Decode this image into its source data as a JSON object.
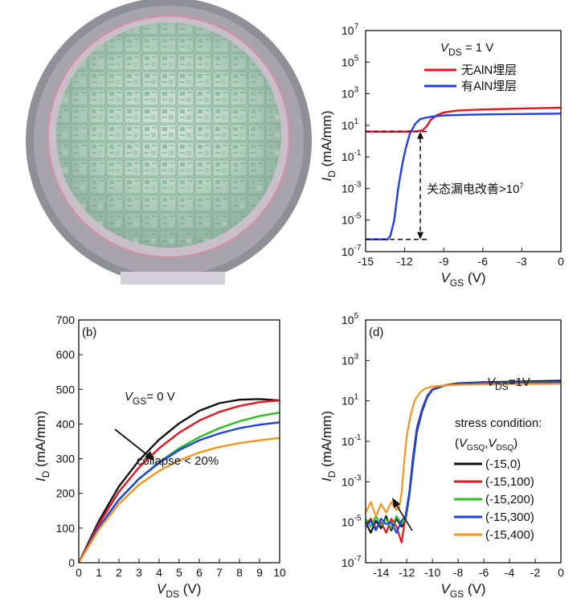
{
  "chart_data": [
    {
      "id": "a",
      "type": "photo",
      "description_label": "",
      "panel_label": ""
    },
    {
      "id": "transfer_top",
      "type": "line",
      "y_scale": "log",
      "xlabel": {
        "main": "V",
        "sub": "GS",
        "unit": " (V)"
      },
      "ylabel": {
        "main": "I",
        "sub": "D",
        "unit": " (mA/mm)"
      },
      "xlim": [
        -15,
        0
      ],
      "ylim": [
        1e-07,
        10000000.0
      ],
      "x_ticks": [
        -15,
        -12,
        -9,
        -6,
        -3,
        0
      ],
      "y_ticks": [
        {
          "v": 10000000.0,
          "base": "10",
          "exp": "7"
        },
        {
          "v": 100000.0,
          "base": "10",
          "exp": "5"
        },
        {
          "v": 1000.0,
          "base": "10",
          "exp": "3"
        },
        {
          "v": 10.0,
          "base": "10",
          "exp": "1"
        },
        {
          "v": 0.1,
          "base": "10",
          "exp": "-1"
        },
        {
          "v": 0.001,
          "base": "10",
          "exp": "-3"
        },
        {
          "v": 1e-05,
          "base": "10",
          "exp": "-5"
        },
        {
          "v": 1e-07,
          "base": "10",
          "exp": "-7"
        }
      ],
      "condition": {
        "main": "V",
        "sub": "DS",
        "rest": " = 1 V"
      },
      "legend": "top-right",
      "series": [
        {
          "name": "无AlN埋层",
          "color": "#e8141b",
          "x": [
            -15,
            -14,
            -13,
            -12,
            -11,
            -10.6,
            -10.3,
            -10,
            -9.5,
            -9,
            -8,
            -6,
            -4,
            -2,
            0
          ],
          "y": [
            4,
            4,
            4,
            4,
            4.2,
            5,
            9,
            22,
            45,
            65,
            85,
            100,
            110,
            120,
            130
          ]
        },
        {
          "name": "有AlN埋层",
          "color": "#1d3ff0",
          "x": [
            -15,
            -14,
            -13.6,
            -13.3,
            -13.1,
            -12.8,
            -12.5,
            -12.2,
            -11.9,
            -11.6,
            -11.2,
            -10.8,
            -10,
            -9,
            -7,
            -5,
            -3,
            -1,
            0
          ],
          "y": [
            6e-07,
            6e-07,
            6e-07,
            6e-07,
            1e-06,
            1e-05,
            0.001,
            0.03,
            0.4,
            3,
            12,
            25,
            35,
            42,
            47,
            50,
            52,
            54,
            55
          ]
        }
      ],
      "annotation": {
        "text": "关态漏电改善>10",
        "exp": "7",
        "x": -10.8,
        "y_top": 4,
        "y_bottom": 6e-07
      }
    },
    {
      "id": "b",
      "type": "line",
      "panel_label": "(b)",
      "xlabel": {
        "main": "V",
        "sub": "DS",
        "unit": " (V)"
      },
      "ylabel": {
        "main": "I",
        "sub": "D",
        "unit": " (mA/mm)"
      },
      "xlim": [
        0,
        10
      ],
      "ylim": [
        0,
        700
      ],
      "x_ticks": [
        0,
        1,
        2,
        3,
        4,
        5,
        6,
        7,
        8,
        9,
        10
      ],
      "y_ticks": [
        0,
        100,
        200,
        300,
        400,
        500,
        600,
        700
      ],
      "annotations": [
        {
          "main": "V",
          "sub": "GS",
          "rest": "= 0 V"
        },
        {
          "text": "collapse < 20%"
        }
      ],
      "series": [
        {
          "color": "#111111",
          "x": [
            0,
            1,
            2,
            3,
            4,
            5,
            6,
            7,
            8,
            9,
            10
          ],
          "y": [
            0,
            120,
            220,
            295,
            355,
            402,
            438,
            460,
            470,
            472,
            468
          ]
        },
        {
          "color": "#e8141b",
          "x": [
            0,
            1,
            2,
            3,
            4,
            5,
            6,
            7,
            8,
            9,
            10
          ],
          "y": [
            0,
            112,
            205,
            275,
            330,
            375,
            410,
            435,
            452,
            463,
            468
          ]
        },
        {
          "color": "#28c021",
          "x": [
            0,
            1,
            2,
            3,
            4,
            5,
            6,
            7,
            8,
            9,
            10
          ],
          "y": [
            0,
            103,
            182,
            242,
            290,
            330,
            362,
            388,
            408,
            423,
            433
          ]
        },
        {
          "color": "#1d3ff0",
          "x": [
            0,
            1,
            2,
            3,
            4,
            5,
            6,
            7,
            8,
            9,
            10
          ],
          "y": [
            0,
            103,
            182,
            242,
            288,
            325,
            353,
            373,
            388,
            398,
            405
          ]
        },
        {
          "color": "#f7941d",
          "x": [
            0,
            1,
            2,
            3,
            4,
            5,
            6,
            7,
            8,
            9,
            10
          ],
          "y": [
            0,
            96,
            170,
            225,
            265,
            295,
            318,
            334,
            345,
            353,
            360
          ]
        }
      ]
    },
    {
      "id": "d",
      "type": "line",
      "panel_label": "(d)",
      "y_scale": "log",
      "xlabel": {
        "main": "V",
        "sub": "GS",
        "unit": " (V)"
      },
      "ylabel": {
        "main": "I",
        "sub": "D",
        "unit": " (mA/mm)"
      },
      "xlim": [
        -15.2,
        0
      ],
      "ylim": [
        1e-07,
        100000.0
      ],
      "x_ticks": [
        -14,
        -12,
        -10,
        -8,
        -6,
        -4,
        -2,
        0
      ],
      "y_ticks": [
        {
          "v": 100000.0,
          "base": "10",
          "exp": "5"
        },
        {
          "v": 1000.0,
          "base": "10",
          "exp": "3"
        },
        {
          "v": 10.0,
          "base": "10",
          "exp": "1"
        },
        {
          "v": 0.1,
          "base": "10",
          "exp": "-1"
        },
        {
          "v": 0.001,
          "base": "10",
          "exp": "-3"
        },
        {
          "v": 1e-05,
          "base": "10",
          "exp": "-5"
        },
        {
          "v": 1e-07,
          "base": "10",
          "exp": "-7"
        }
      ],
      "condition": {
        "main": "V",
        "sub": "DS",
        "rest": "=1V"
      },
      "legend_title": "stress condition:",
      "legend_subtitle": {
        "a": "V",
        "asub": "GSQ",
        "b": "V",
        "bsub": "DSQ"
      },
      "legend": "right",
      "series": [
        {
          "name": "(-15,0)",
          "color": "#111111",
          "x": [
            -15.2,
            -14.8,
            -14.4,
            -14,
            -13.6,
            -13.2,
            -12.8,
            -12.4,
            -12.1,
            -11.8,
            -11.5,
            -11.2,
            -10.8,
            -10.4,
            -10,
            -9,
            -8,
            -6,
            -4,
            -2,
            0
          ],
          "y": [
            1e-05,
            3e-06,
            1.2e-05,
            5e-06,
            2e-05,
            4e-06,
            1.5e-05,
            6e-06,
            1.2e-05,
            0.0002,
            0.01,
            0.3,
            3,
            15,
            35,
            60,
            75,
            85,
            90,
            95,
            100
          ]
        },
        {
          "name": "(-15,100)",
          "color": "#e8141b",
          "x": [
            -15.2,
            -14.8,
            -14.4,
            -14,
            -13.6,
            -13.2,
            -12.8,
            -12.4,
            -12.1,
            -11.8,
            -11.5,
            -11.2,
            -10.8,
            -10.4,
            -10,
            -9,
            -8,
            -6,
            -4,
            -2,
            0
          ],
          "y": [
            8e-06,
            1.5e-05,
            5e-06,
            1e-05,
            3e-06,
            1.5e-05,
            6e-06,
            1e-06,
            2e-05,
            0.0003,
            0.02,
            0.5,
            4,
            18,
            38,
            60,
            72,
            80,
            83,
            85,
            88
          ]
        },
        {
          "name": "(-15,200)",
          "color": "#28c021",
          "x": [
            -15.2,
            -14.8,
            -14.4,
            -14,
            -13.6,
            -13.2,
            -12.8,
            -12.4,
            -12.1,
            -11.8,
            -11.5,
            -11.2,
            -10.8,
            -10.4,
            -10,
            -9,
            -8,
            -6,
            -4,
            -2,
            0
          ],
          "y": [
            1.5e-05,
            6e-06,
            2e-05,
            7e-06,
            1.5e-05,
            5e-06,
            2e-05,
            8e-06,
            1.5e-05,
            0.00025,
            0.015,
            0.4,
            3.5,
            16,
            36,
            58,
            70,
            78,
            82,
            84,
            86
          ]
        },
        {
          "name": "(-15,300)",
          "color": "#1d3ff0",
          "x": [
            -15.2,
            -14.8,
            -14.4,
            -14,
            -13.6,
            -13.2,
            -12.8,
            -12.4,
            -12.1,
            -11.8,
            -11.5,
            -11.2,
            -10.8,
            -10.4,
            -10,
            -9,
            -8,
            -6,
            -4,
            -2,
            0
          ],
          "y": [
            6e-06,
            1.2e-05,
            4e-06,
            1.5e-05,
            8e-06,
            1e-05,
            3e-06,
            1.2e-05,
            2e-05,
            0.0003,
            0.02,
            0.45,
            3.8,
            17,
            36,
            58,
            70,
            77,
            80,
            82,
            84
          ]
        },
        {
          "name": "(-15,400)",
          "color": "#f7941d",
          "x": [
            -15.2,
            -14.8,
            -14.4,
            -14,
            -13.6,
            -13.2,
            -12.8,
            -12.6,
            -12.4,
            -12.2,
            -12,
            -11.7,
            -11.4,
            -11,
            -10.6,
            -10,
            -9,
            -8,
            -6,
            -4,
            -2,
            0
          ],
          "y": [
            3e-05,
            0.0001,
            2e-05,
            8e-05,
            3e-05,
            0.0001,
            4e-05,
            5e-05,
            0.0003,
            0.01,
            0.2,
            2,
            10,
            25,
            40,
            52,
            58,
            62,
            66,
            68,
            69,
            70
          ]
        }
      ]
    }
  ]
}
